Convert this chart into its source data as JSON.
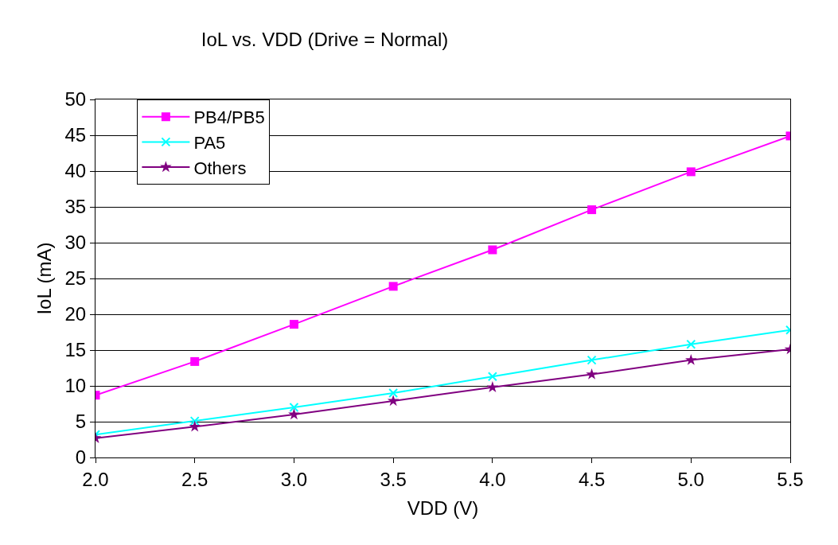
{
  "chart_data": {
    "type": "line",
    "title": "IoL vs. VDD (Drive = Normal)",
    "xlabel": "VDD (V)",
    "ylabel": "IoL (mA)",
    "x": [
      2.0,
      2.5,
      3.0,
      3.5,
      4.0,
      4.5,
      5.0,
      5.5
    ],
    "series": [
      {
        "name": "PB4/PB5",
        "color": "#ff00ff",
        "marker": "square",
        "values": [
          8.7,
          13.4,
          18.6,
          23.9,
          29.0,
          34.6,
          39.9,
          44.9
        ]
      },
      {
        "name": "PA5",
        "color": "#00ffff",
        "marker": "cross",
        "values": [
          3.2,
          5.1,
          7.0,
          9.0,
          11.3,
          13.6,
          15.8,
          17.8
        ]
      },
      {
        "name": "Others",
        "color": "#800080",
        "marker": "star",
        "values": [
          2.7,
          4.3,
          6.0,
          7.9,
          9.8,
          11.6,
          13.6,
          15.1
        ]
      }
    ],
    "xlim": [
      2.0,
      5.5
    ],
    "xticks": [
      {
        "value": 2.0,
        "label": "2.0"
      },
      {
        "value": 2.5,
        "label": "2.5"
      },
      {
        "value": 3.0,
        "label": "3.0"
      },
      {
        "value": 3.5,
        "label": "3.5"
      },
      {
        "value": 4.0,
        "label": "4.0"
      },
      {
        "value": 4.5,
        "label": "4.5"
      },
      {
        "value": 5.0,
        "label": "5.0"
      },
      {
        "value": 5.5,
        "label": "5.5"
      }
    ],
    "ylim": [
      0,
      50
    ],
    "yticks": [
      0,
      5,
      10,
      15,
      20,
      25,
      30,
      35,
      40,
      45,
      50
    ],
    "grid": "y",
    "legend": "top left",
    "line_style": "solid"
  }
}
